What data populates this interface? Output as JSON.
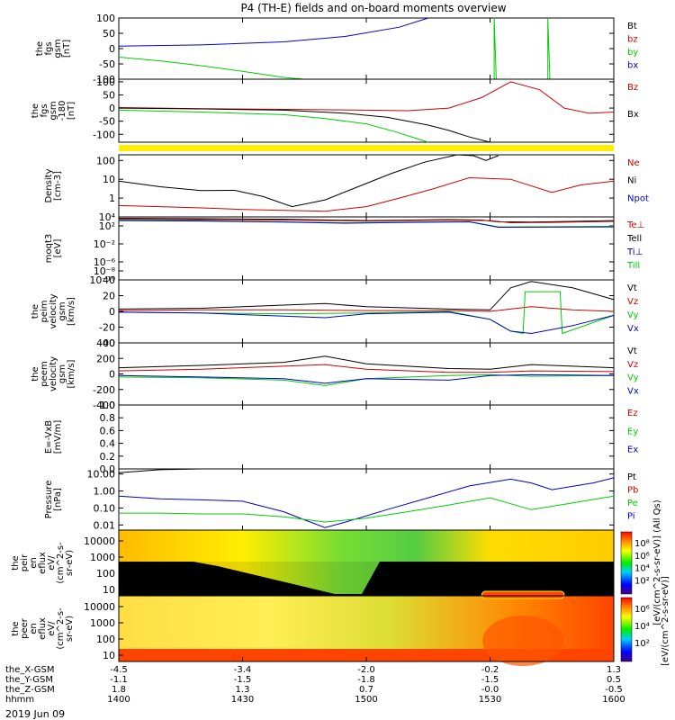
{
  "title": "P4 (TH-E) fields and on-board moments overview",
  "chart_data": {
    "type": "line",
    "xlim": [
      0,
      120
    ],
    "x_ticks": [
      0,
      30,
      60,
      90,
      120
    ],
    "panels": [
      {
        "id": "fgs",
        "ylabel": [
          "the",
          "fgs",
          "gsm",
          "[nT]"
        ],
        "ylim": [
          -100,
          100
        ],
        "scale": "linear",
        "tick_labels": [
          "100",
          "50",
          "0",
          "-50",
          "-100"
        ],
        "ticks": [
          100,
          50,
          0,
          -50,
          -100
        ],
        "legend": [
          {
            "name": "Bt",
            "color": "#000000"
          },
          {
            "name": "bz",
            "color": "#cc0000"
          },
          {
            "name": "by",
            "color": "#00cc00"
          },
          {
            "name": "bx",
            "color": "#0000cc"
          }
        ],
        "series": [
          {
            "name": "bx",
            "color": "#0000cc",
            "x": [
              0,
              20,
              40,
              55,
              68,
              75
            ],
            "y": [
              8,
              12,
              22,
              40,
              70,
              100
            ]
          },
          {
            "name": "by",
            "color": "#00cc00",
            "x": [
              0,
              10,
              20,
              30,
              40,
              45
            ],
            "y": [
              -28,
              -40,
              -56,
              -74,
              -94,
              -100
            ]
          },
          {
            "name": "by",
            "color": "#00cc00",
            "x": [
              91,
              91,
              91.5,
              104,
              104,
              104.5
            ],
            "y": [
              -100,
              100,
              -100,
              -100,
              100,
              -100
            ]
          }
        ]
      },
      {
        "id": "fgs2",
        "ylabel": [
          "the",
          "fgs",
          "gsm",
          "-180",
          "[nT]"
        ],
        "ylim": [
          -130,
          110
        ],
        "scale": "linear",
        "tick_labels": [
          "100",
          "50",
          "0",
          "-50",
          "-100"
        ],
        "ticks": [
          100,
          50,
          0,
          -50,
          -100
        ],
        "legend": [
          {
            "name": "Bz",
            "color": "#cc0000"
          },
          {
            "name": "Bx",
            "color": "#000000"
          }
        ],
        "series": [
          {
            "name": "Bz",
            "color": "#cc0000",
            "x": [
              0,
              20,
              40,
              60,
              70,
              80,
              88,
              95,
              102,
              108,
              114,
              120
            ],
            "y": [
              2,
              -2,
              -5,
              -8,
              -10,
              0,
              40,
              100,
              70,
              0,
              -20,
              -15
            ]
          },
          {
            "name": "Bx",
            "color": "#000000",
            "x": [
              0,
              20,
              40,
              55,
              65,
              75,
              80,
              85,
              90
            ],
            "y": [
              0,
              -3,
              -8,
              -20,
              -35,
              -65,
              -85,
              -110,
              -130
            ]
          },
          {
            "name": "Bx",
            "color": "#00cc00",
            "x": [
              0,
              20,
              40,
              50,
              60,
              67,
              72,
              75
            ],
            "y": [
              -8,
              -15,
              -25,
              -40,
              -60,
              -90,
              -115,
              -130
            ]
          }
        ]
      },
      {
        "id": "density",
        "ylabel": [
          "Density",
          "[cm-3]"
        ],
        "ylim": [
          0.1,
          200
        ],
        "scale": "log",
        "tick_labels": [
          "100",
          "10",
          "1"
        ],
        "ticks": [
          100,
          10,
          1
        ],
        "legend": [
          {
            "name": "Ne",
            "color": "#cc0000"
          },
          {
            "name": "Ni",
            "color": "#000000"
          },
          {
            "name": "Npot",
            "color": "#0000cc"
          }
        ],
        "series": [
          {
            "name": "Ni",
            "color": "#000000",
            "x": [
              0,
              10,
              20,
              28,
              35,
              42,
              50,
              58,
              66,
              74,
              82,
              86,
              89,
              92
            ],
            "y": [
              8,
              4,
              2.5,
              2.6,
              1.2,
              0.35,
              0.8,
              4,
              20,
              80,
              200,
              180,
              100,
              180
            ]
          },
          {
            "name": "Ne",
            "color": "#cc0000",
            "x": [
              0,
              10,
              20,
              30,
              40,
              50,
              60,
              68,
              76,
              85,
              95,
              105,
              112,
              120
            ],
            "y": [
              0.4,
              0.35,
              0.3,
              0.25,
              0.22,
              0.2,
              0.35,
              1,
              3,
              12,
              10,
              2,
              5,
              8
            ]
          }
        ]
      },
      {
        "id": "moqt3",
        "ylabel": [
          "moqt3",
          "[eV]"
        ],
        "ylim": [
          1e-10,
          10000.0
        ],
        "scale": "log",
        "tick_labels": [
          "10⁴",
          "10²",
          "10⁻²",
          "10⁻⁶",
          "10⁻⁸",
          "10⁻¹⁰"
        ],
        "ticks": [
          10000.0,
          100.0,
          0.01,
          1e-06,
          1e-08,
          1e-10
        ],
        "legend": [
          {
            "name": "Te⊥",
            "color": "#cc0000"
          },
          {
            "name": "Tell",
            "color": "#000000"
          },
          {
            "name": "Ti⊥",
            "color": "#0000cc"
          },
          {
            "name": "Till",
            "color": "#00cc00"
          }
        ],
        "series": [
          {
            "name": "Tell",
            "color": "#000000",
            "x": [
              0,
              20,
              40,
              60,
              80,
              88,
              92,
              100,
              120
            ],
            "y": [
              5000,
              4000,
              3000,
              1500,
              2500,
              2000,
              800,
              700,
              1500
            ]
          },
          {
            "name": "Te⊥",
            "color": "#cc0000",
            "x": [
              0,
              20,
              40,
              60,
              80,
              90,
              95,
              105,
              120
            ],
            "y": [
              3000,
              2500,
              2000,
              1200,
              2000,
              1500,
              500,
              600,
              1000
            ]
          },
          {
            "name": "Till",
            "color": "#00cc00",
            "x": [
              0,
              20,
              40,
              55,
              70,
              85,
              92,
              120
            ],
            "y": [
              2000,
              1500,
              800,
              500,
              700,
              900,
              60,
              80
            ]
          },
          {
            "name": "Ti⊥",
            "color": "#0000cc",
            "x": [
              0,
              20,
              40,
              55,
              70,
              85,
              92,
              120
            ],
            "y": [
              1500,
              1200,
              700,
              400,
              600,
              800,
              50,
              60
            ]
          }
        ]
      },
      {
        "id": "peim",
        "ylabel": [
          "the",
          "peim",
          "velocity",
          "gsm",
          "[km/s]"
        ],
        "ylim": [
          -40,
          40
        ],
        "scale": "linear",
        "tick_labels": [
          "40",
          "20",
          "0",
          "-20",
          "-40"
        ],
        "ticks": [
          40,
          20,
          0,
          -20,
          -40
        ],
        "legend": [
          {
            "name": "Vt",
            "color": "#000000"
          },
          {
            "name": "Vz",
            "color": "#cc0000"
          },
          {
            "name": "Vy",
            "color": "#00cc00"
          },
          {
            "name": "Vx",
            "color": "#0000cc"
          }
        ],
        "series": [
          {
            "name": "Vt",
            "color": "#000000",
            "x": [
              0,
              20,
              40,
              50,
              60,
              80,
              90,
              95,
              100,
              110,
              120
            ],
            "y": [
              3,
              4,
              8,
              10,
              6,
              3,
              2,
              30,
              38,
              30,
              15
            ]
          },
          {
            "name": "Vz",
            "color": "#cc0000",
            "x": [
              0,
              20,
              40,
              60,
              80,
              90,
              95,
              100,
              110,
              120
            ],
            "y": [
              1,
              2,
              2,
              1,
              1,
              0,
              3,
              6,
              2,
              0
            ]
          },
          {
            "name": "Vy",
            "color": "#00cc00",
            "x": [
              0,
              20,
              40,
              60,
              80,
              90,
              95,
              98,
              98.5,
              107,
              107.5,
              120
            ],
            "y": [
              -1,
              -2,
              -3,
              -2,
              0,
              -10,
              -25,
              -28,
              25,
              25,
              -28,
              -5
            ]
          },
          {
            "name": "Vx",
            "color": "#0000cc",
            "x": [
              0,
              20,
              40,
              50,
              60,
              80,
              90,
              95,
              100,
              110,
              120
            ],
            "y": [
              -1,
              -2,
              -6,
              -8,
              -3,
              -1,
              -10,
              -25,
              -28,
              -18,
              -5
            ]
          }
        ]
      },
      {
        "id": "peem",
        "ylabel": [
          "the",
          "peem",
          "velocity",
          "gsm",
          "[km/s]"
        ],
        "ylim": [
          -400,
          400
        ],
        "scale": "linear",
        "tick_labels": [
          "400",
          "200",
          "0",
          "-200",
          "-400"
        ],
        "ticks": [
          400,
          200,
          0,
          -200,
          -400
        ],
        "legend": [
          {
            "name": "Vt",
            "color": "#000000"
          },
          {
            "name": "Vz",
            "color": "#cc0000"
          },
          {
            "name": "Vy",
            "color": "#00cc00"
          },
          {
            "name": "Vx",
            "color": "#0000cc"
          }
        ],
        "series": [
          {
            "name": "Vt",
            "color": "#000000",
            "x": [
              0,
              20,
              40,
              50,
              60,
              80,
              90,
              100,
              110,
              120
            ],
            "y": [
              80,
              110,
              150,
              230,
              130,
              70,
              60,
              120,
              100,
              80
            ]
          },
          {
            "name": "Vz",
            "color": "#cc0000",
            "x": [
              0,
              20,
              40,
              50,
              60,
              80,
              90,
              100,
              120
            ],
            "y": [
              40,
              60,
              100,
              120,
              60,
              20,
              20,
              40,
              30
            ]
          },
          {
            "name": "Vy",
            "color": "#00cc00",
            "x": [
              0,
              20,
              40,
              50,
              60,
              80,
              90,
              100,
              120
            ],
            "y": [
              -40,
              -50,
              -80,
              -150,
              -60,
              -20,
              -10,
              -30,
              -20
            ]
          },
          {
            "name": "Vx",
            "color": "#0000cc",
            "x": [
              0,
              20,
              40,
              50,
              60,
              80,
              90,
              100,
              120
            ],
            "y": [
              -20,
              -40,
              -60,
              -120,
              -60,
              -80,
              -20,
              -10,
              -20
            ]
          }
        ]
      },
      {
        "id": "efield",
        "ylabel": [
          "E=-VxB",
          "[mV/m]"
        ],
        "ylim": [
          0,
          1.0
        ],
        "scale": "linear",
        "tick_labels": [
          "1.0",
          "0.8",
          "0.6",
          "0.4",
          "0.2",
          "0.0"
        ],
        "ticks": [
          1.0,
          0.8,
          0.6,
          0.4,
          0.2,
          0.0
        ],
        "legend": [
          {
            "name": "Ez",
            "color": "#cc0000"
          },
          {
            "name": "Ey",
            "color": "#00cc00"
          },
          {
            "name": "Ex",
            "color": "#0000cc"
          }
        ],
        "series": []
      },
      {
        "id": "pressure",
        "ylabel": [
          "Pressure",
          "[nPa]"
        ],
        "ylim": [
          0.005,
          20
        ],
        "scale": "log",
        "tick_labels": [
          "10.00",
          "1.00",
          "0.10",
          "0.01"
        ],
        "ticks": [
          10,
          1,
          0.1,
          0.01
        ],
        "legend": [
          {
            "name": "Pt",
            "color": "#000000"
          },
          {
            "name": "Pb",
            "color": "#cc0000"
          },
          {
            "name": "Pe",
            "color": "#00cc00"
          },
          {
            "name": "Pi",
            "color": "#0000cc"
          }
        ],
        "series": [
          {
            "name": "Pt",
            "color": "#000000",
            "x": [
              0,
              10,
              20
            ],
            "y": [
              12,
              18,
              25
            ]
          },
          {
            "name": "Pi",
            "color": "#0000cc",
            "x": [
              0,
              10,
              20,
              30,
              40,
              45,
              50,
              55,
              65,
              75,
              85,
              95,
              100,
              105,
              115,
              120
            ],
            "y": [
              0.5,
              0.35,
              0.3,
              0.25,
              0.06,
              0.02,
              0.007,
              0.015,
              0.08,
              0.4,
              2,
              5,
              3,
              1.2,
              3,
              6
            ]
          },
          {
            "name": "Pe",
            "color": "#00cc00",
            "x": [
              0,
              10,
              20,
              30,
              40,
              50,
              60,
              70,
              80,
              90,
              100,
              110,
              120
            ],
            "y": [
              0.05,
              0.05,
              0.045,
              0.045,
              0.03,
              0.015,
              0.025,
              0.06,
              0.15,
              0.4,
              0.08,
              0.2,
              0.5
            ]
          }
        ]
      }
    ],
    "spectrograms": [
      {
        "id": "peir",
        "ylabel": [
          "the",
          "peir",
          "en",
          "eflux",
          "eV/",
          "(cm^2-s-",
          "sr-eV)"
        ],
        "tick_labels": [
          "10000",
          "1000",
          "100",
          "10"
        ]
      },
      {
        "id": "peer",
        "ylabel": [
          "the",
          "peer",
          "en",
          "eflux",
          "eV/",
          "(cm^2-s-",
          "sr-eV)"
        ],
        "tick_labels": [
          "10000",
          "1000",
          "100",
          "10"
        ]
      }
    ],
    "colorbar": {
      "label": "[eV/(cm^2-s-sr-eV)]",
      "tick_labels_top": [
        "10⁸",
        "10⁶",
        "10⁴",
        "10²"
      ],
      "tick_labels_bottom": [
        "10⁶",
        "10⁴",
        "10²"
      ],
      "label_top": "[eV/(cm^2-s-sr-eV)] (All Qs)"
    },
    "x_axis_rows": [
      {
        "label": "the_X-GSM",
        "values": [
          "-4.5",
          "-3.4",
          "-2.0",
          "-0.2",
          "1.3"
        ]
      },
      {
        "label": "the_Y-GSM",
        "values": [
          "-1.1",
          "-1.5",
          "-1.8",
          "-1.5",
          "0.5"
        ]
      },
      {
        "label": "the_Z-GSM",
        "values": [
          "1.8",
          "1.3",
          "0.7",
          "-0.0",
          "-0.5"
        ]
      },
      {
        "label": "hhmm",
        "values": [
          "1400",
          "1430",
          "1500",
          "1530",
          "1600"
        ]
      }
    ],
    "date_label": "2019 Jun 09"
  }
}
